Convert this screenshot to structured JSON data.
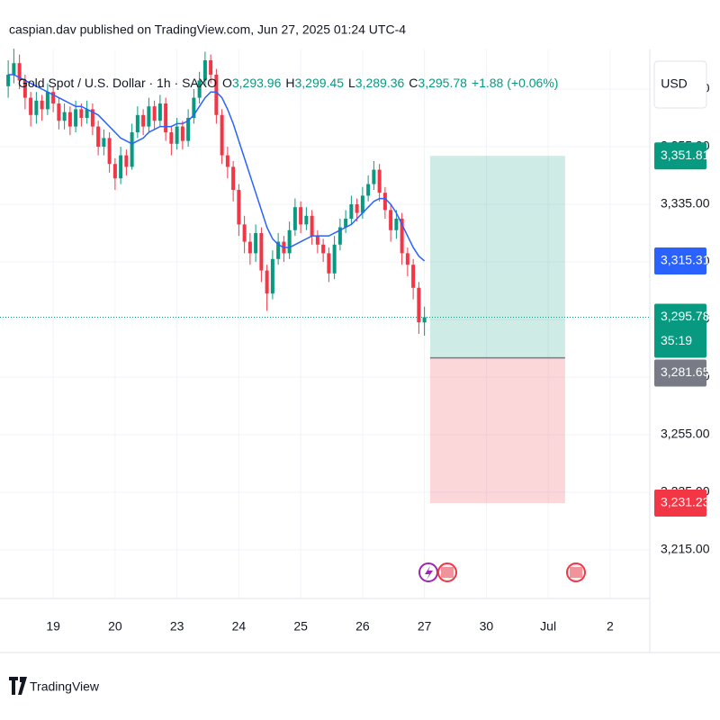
{
  "chart_data": {
    "type": "candlestick",
    "attribution": "caspian.dav published on TradingView.com, Jun 27, 2025 01:24 UTC-4",
    "title": "Gold Spot / U.S. Dollar · 1h · SAXO",
    "ohlc_legend": [
      {
        "key": "O",
        "value": "3,293.96"
      },
      {
        "key": "H",
        "value": "3,299.45"
      },
      {
        "key": "L",
        "value": "3,289.36"
      },
      {
        "key": "C",
        "value": "3,295.78"
      }
    ],
    "change": "+1.88 (+0.06%)",
    "currency": "USD",
    "countdown": "35:19",
    "categories": [
      null,
      null,
      null,
      null,
      null,
      null,
      null,
      null,
      "19",
      null,
      null,
      null,
      null,
      null,
      null,
      null,
      null,
      null,
      null,
      "20",
      null,
      null,
      null,
      null,
      null,
      null,
      null,
      null,
      null,
      null,
      "23",
      null,
      null,
      null,
      null,
      null,
      null,
      null,
      null,
      null,
      null,
      "24",
      null,
      null,
      null,
      null,
      null,
      null,
      null,
      null,
      null,
      null,
      "25",
      null,
      null,
      null,
      null,
      null,
      null,
      null,
      null,
      null,
      null,
      "26",
      null,
      null,
      null,
      null,
      null,
      null,
      null,
      null,
      null,
      null,
      "27",
      null,
      null,
      null,
      null,
      null,
      null,
      null,
      null,
      null,
      null,
      "30",
      null,
      null,
      null,
      null,
      null,
      null,
      null,
      null,
      null,
      null,
      "Jul",
      null,
      null,
      null,
      null,
      null,
      null,
      null,
      null,
      null,
      null,
      "2",
      null,
      null,
      null,
      null,
      null,
      null
    ],
    "open": [
      3376,
      3380,
      3384,
      3378,
      3372,
      3366,
      3371,
      3368,
      3374,
      3370,
      3364,
      3367,
      3362,
      3368,
      3365,
      3368,
      3362,
      3355,
      3358,
      3349,
      3344,
      3352,
      3348,
      3360,
      3366,
      3362,
      3369,
      3364,
      3370,
      3360,
      3356,
      3362,
      3357,
      3365,
      3372,
      3378,
      3385,
      3380,
      3366,
      3352,
      3348,
      3340,
      3328,
      3322,
      3318,
      3325,
      3312,
      3304,
      3316,
      3322,
      3318,
      3326,
      3334,
      3328,
      3331,
      3324,
      3321,
      3318,
      3311,
      3321,
      3327,
      3330,
      3335,
      3332,
      3338,
      3342,
      3347,
      3339,
      3333,
      3326,
      3330,
      3318,
      3314,
      3306,
      3293.96,
      null,
      null,
      null,
      null,
      null,
      null,
      null,
      null,
      null,
      null,
      null,
      null,
      null,
      null,
      null,
      null,
      null,
      null,
      null,
      null,
      null,
      null,
      null,
      null,
      null,
      null,
      null,
      null,
      null,
      null,
      null,
      null,
      null,
      null,
      null,
      null,
      null,
      null,
      null
    ],
    "high": [
      3385,
      3389,
      3387,
      3380,
      3374,
      3374,
      3373,
      3377,
      3376,
      3372,
      3370,
      3369,
      3371,
      3370,
      3371,
      3370,
      3364,
      3361,
      3360,
      3351,
      3355,
      3354,
      3363,
      3369,
      3368,
      3372,
      3371,
      3373,
      3372,
      3362,
      3365,
      3364,
      3368,
      3375,
      3381,
      3388,
      3387,
      3382,
      3368,
      3355,
      3350,
      3342,
      3331,
      3325,
      3328,
      3327,
      3314,
      3319,
      3325,
      3324,
      3329,
      3337,
      3336,
      3334,
      3333,
      3326,
      3323,
      3320,
      3324,
      3330,
      3333,
      3338,
      3337,
      3341,
      3345,
      3350,
      3349,
      3341,
      3335,
      3333,
      3332,
      3320,
      3316,
      3308,
      3299.45,
      null,
      null,
      null,
      null,
      null,
      null,
      null,
      null,
      null,
      null,
      null,
      null,
      null,
      null,
      null,
      null,
      null,
      null,
      null,
      null,
      null,
      null,
      null,
      null,
      null,
      null,
      null,
      null,
      null,
      null,
      null,
      null,
      null,
      null,
      null,
      null,
      null,
      null,
      null
    ],
    "low": [
      3372,
      3377,
      3375,
      3368,
      3362,
      3363,
      3364,
      3366,
      3367,
      3361,
      3361,
      3359,
      3360,
      3362,
      3363,
      3359,
      3352,
      3352,
      3346,
      3340,
      3342,
      3345,
      3347,
      3358,
      3359,
      3360,
      3361,
      3362,
      3357,
      3352,
      3354,
      3354,
      3355,
      3363,
      3370,
      3376,
      3377,
      3363,
      3349,
      3344,
      3336,
      3324,
      3318,
      3314,
      3315,
      3308,
      3298,
      3302,
      3314,
      3315,
      3316,
      3324,
      3325,
      3326,
      3321,
      3318,
      3315,
      3308,
      3309,
      3319,
      3325,
      3328,
      3329,
      3330,
      3336,
      3340,
      3336,
      3330,
      3322,
      3323,
      3314,
      3310,
      3302,
      3290,
      3289.36,
      null,
      null,
      null,
      null,
      null,
      null,
      null,
      null,
      null,
      null,
      null,
      null,
      null,
      null,
      null,
      null,
      null,
      null,
      null,
      null,
      null,
      null,
      null,
      null,
      null,
      null,
      null,
      null,
      null,
      null,
      null,
      null,
      null,
      null,
      null,
      null,
      null,
      null,
      null
    ],
    "close": [
      3380,
      3384,
      3378,
      3372,
      3366,
      3371,
      3368,
      3374,
      3370,
      3364,
      3367,
      3362,
      3368,
      3365,
      3368,
      3362,
      3355,
      3358,
      3349,
      3344,
      3352,
      3348,
      3360,
      3366,
      3362,
      3369,
      3364,
      3370,
      3360,
      3356,
      3362,
      3357,
      3365,
      3372,
      3378,
      3385,
      3380,
      3366,
      3352,
      3348,
      3340,
      3328,
      3322,
      3318,
      3325,
      3312,
      3304,
      3316,
      3322,
      3318,
      3326,
      3334,
      3328,
      3331,
      3324,
      3321,
      3318,
      3311,
      3321,
      3327,
      3330,
      3335,
      3332,
      3338,
      3342,
      3347,
      3339,
      3333,
      3326,
      3330,
      3318,
      3314,
      3306,
      3294,
      3295.78,
      null,
      null,
      null,
      null,
      null,
      null,
      null,
      null,
      null,
      null,
      null,
      null,
      null,
      null,
      null,
      null,
      null,
      null,
      null,
      null,
      null,
      null,
      null,
      null,
      null,
      null,
      null,
      null,
      null,
      null,
      null,
      null,
      null,
      null,
      null,
      null,
      null,
      null,
      null
    ],
    "up_color": "#089981",
    "down_color": "#f23645",
    "ma": {
      "color": "#2962ff",
      "values": [
        3380,
        3380,
        3379,
        3378,
        3377,
        3376,
        3375,
        3374,
        3373,
        3372,
        3371,
        3370,
        3369,
        3369,
        3368,
        3367,
        3366,
        3364,
        3362,
        3360,
        3358,
        3357,
        3356,
        3357,
        3358,
        3360,
        3361,
        3362,
        3362,
        3362,
        3363,
        3363,
        3364,
        3366,
        3369,
        3372,
        3374,
        3374,
        3372,
        3368,
        3363,
        3357,
        3351,
        3345,
        3339,
        3333,
        3327,
        3323,
        3321,
        3320,
        3320,
        3321,
        3322,
        3323,
        3324,
        3324,
        3324,
        3324,
        3325,
        3326,
        3327,
        3328,
        3330,
        3332,
        3334,
        3336,
        3337,
        3337,
        3335,
        3332,
        3328,
        3324,
        3320,
        3317,
        3315.31,
        null,
        null,
        null,
        null,
        null,
        null,
        null,
        null,
        null,
        null,
        null,
        null,
        null,
        null,
        null,
        null,
        null,
        null,
        null,
        null,
        null,
        null,
        null,
        null,
        null,
        null,
        null,
        null,
        null,
        null,
        null,
        null,
        null,
        null,
        null,
        null,
        null,
        null,
        null
      ]
    },
    "ylim": [
      3198.1,
      3388.75
    ],
    "yticks": [
      {
        "value": 3215,
        "label": "3,215.00"
      },
      {
        "value": 3235,
        "label": "3,235.00"
      },
      {
        "value": 3255,
        "label": "3,255.00"
      },
      {
        "value": 3275,
        "label": "3,275.00"
      },
      {
        "value": 3295,
        "label": "3,295.00"
      },
      {
        "value": 3315,
        "label": "3,315.00"
      },
      {
        "value": 3335,
        "label": "3,335.00"
      },
      {
        "value": 3355,
        "label": "3,355.00"
      },
      {
        "value": 3375,
        "label": "3,375.00"
      }
    ],
    "grid": true,
    "position": {
      "values": [
        3351.81,
        3281.65,
        3231.23
      ],
      "profit_color": "#089981",
      "loss_color": "#f23645"
    },
    "badges": [
      {
        "value": 3351.81,
        "label": "3,351.81",
        "color": "#089981"
      },
      {
        "value": 3315.31,
        "label": "3,315.31",
        "color": "#2962ff"
      },
      {
        "value": 3295.78,
        "label": "3,295.78",
        "color": "#089981"
      },
      {
        "value": 3281.65,
        "label": "3,281.65",
        "color": "#787b86"
      },
      {
        "value": 3231.23,
        "label": "3,231.23",
        "color": "#f23645"
      }
    ]
  },
  "brand": "TradingView"
}
